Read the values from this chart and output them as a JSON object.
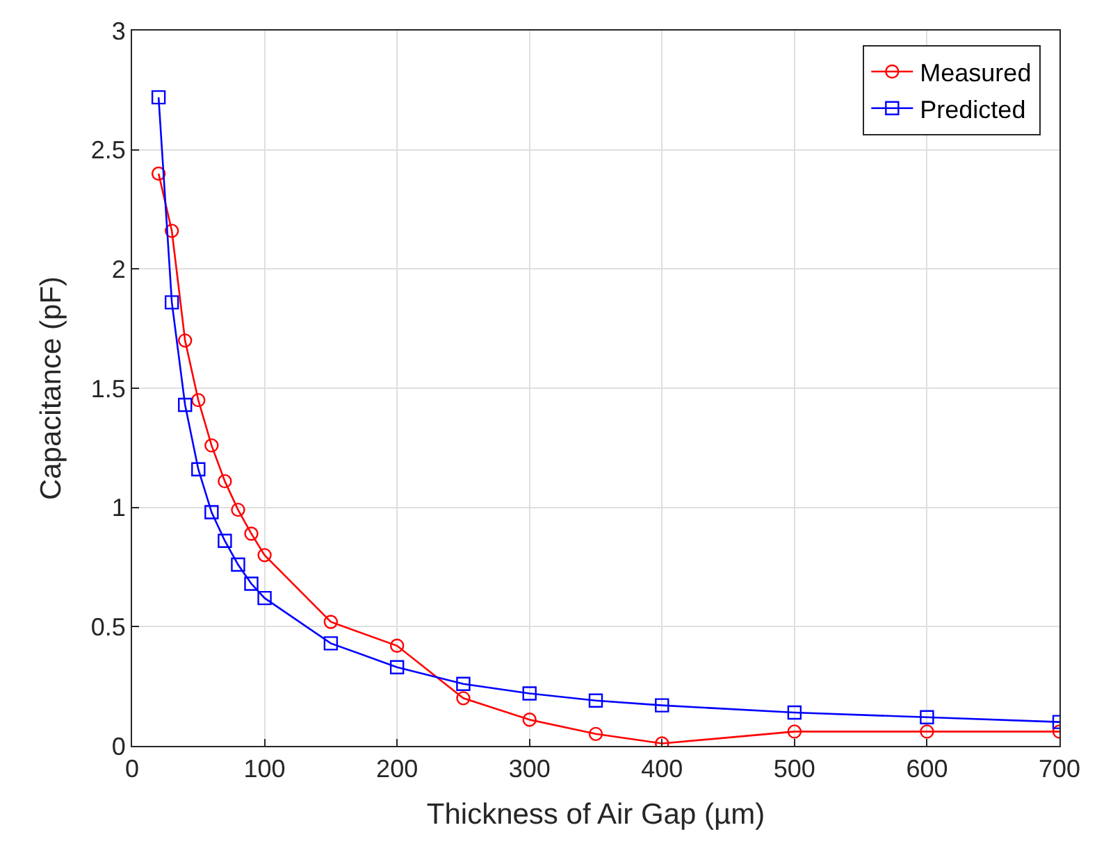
{
  "chart_data": {
    "type": "line",
    "xlabel": "Thickness of Air Gap (µm)",
    "ylabel": "Capacitance (pF)",
    "x": [
      20,
      30,
      40,
      50,
      60,
      70,
      80,
      90,
      100,
      150,
      200,
      250,
      300,
      350,
      400,
      500,
      600,
      700
    ],
    "series": [
      {
        "name": "Measured",
        "color": "#ff0000",
        "marker": "circle",
        "values": [
          2.4,
          2.16,
          1.7,
          1.45,
          1.26,
          1.11,
          0.99,
          0.89,
          0.8,
          0.52,
          0.42,
          0.2,
          0.11,
          0.05,
          0.01,
          0.06,
          0.06,
          0.06
        ]
      },
      {
        "name": "Predicted",
        "color": "#0000ff",
        "marker": "square",
        "values": [
          2.72,
          1.86,
          1.43,
          1.16,
          0.98,
          0.86,
          0.76,
          0.68,
          0.62,
          0.43,
          0.33,
          0.26,
          0.22,
          0.19,
          0.17,
          0.14,
          0.12,
          0.1
        ]
      }
    ],
    "xlim": [
      0,
      700
    ],
    "xticks": [
      0,
      100,
      200,
      300,
      400,
      500,
      600,
      700
    ],
    "ylim": [
      0,
      3
    ],
    "yticks": [
      0,
      0.5,
      1,
      1.5,
      2,
      2.5,
      3
    ],
    "grid": true,
    "legend": "top right",
    "line_style": "solid"
  }
}
